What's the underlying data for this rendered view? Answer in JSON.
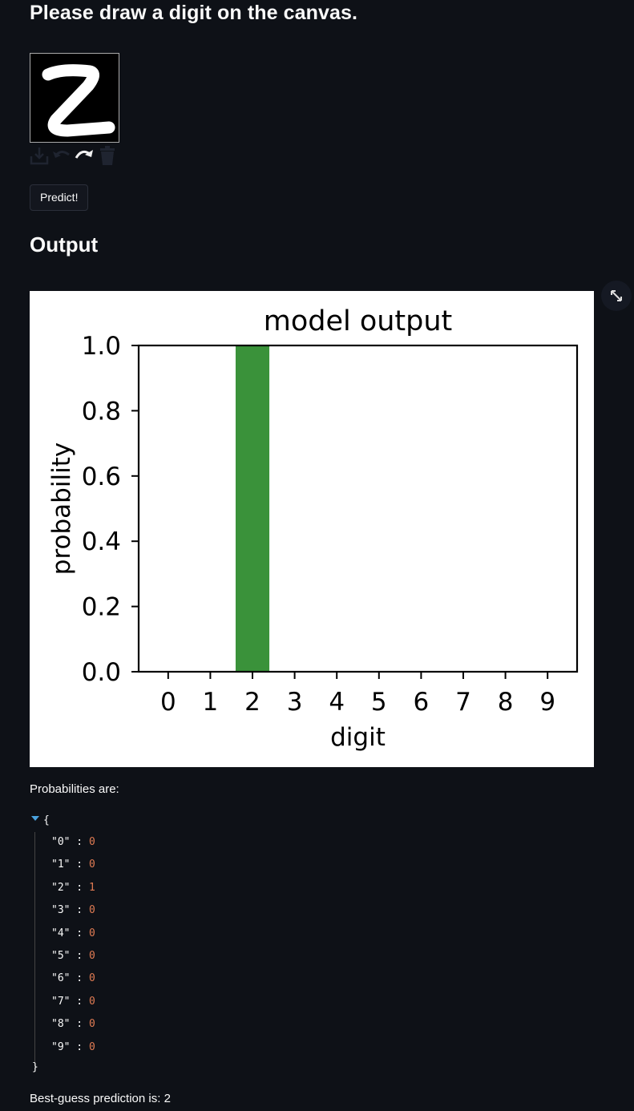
{
  "header": {
    "title": "Please draw a digit on the canvas."
  },
  "canvas": {
    "drawn_glyph": "Z"
  },
  "toolbar": {
    "icons": [
      "download-icon",
      "undo-icon",
      "redo-icon",
      "trash-icon"
    ]
  },
  "predict_button": {
    "label": "Predict!"
  },
  "output": {
    "heading": "Output"
  },
  "chart_data": {
    "type": "bar",
    "title": "model output",
    "xlabel": "digit",
    "ylabel": "probability",
    "categories": [
      "0",
      "1",
      "2",
      "3",
      "4",
      "5",
      "6",
      "7",
      "8",
      "9"
    ],
    "values": [
      0,
      0,
      1,
      0,
      0,
      0,
      0,
      0,
      0,
      0
    ],
    "ylim": [
      0,
      1.0
    ],
    "yticks": [
      "0.0",
      "0.2",
      "0.4",
      "0.6",
      "0.8",
      "1.0"
    ],
    "bar_color": "#3a923a",
    "grid": false
  },
  "probabilities": {
    "label": "Probabilities are:",
    "rows": [
      {
        "key": "\"0\"",
        "value": "0"
      },
      {
        "key": "\"1\"",
        "value": "0"
      },
      {
        "key": "\"2\"",
        "value": "1"
      },
      {
        "key": "\"3\"",
        "value": "0"
      },
      {
        "key": "\"4\"",
        "value": "0"
      },
      {
        "key": "\"5\"",
        "value": "0"
      },
      {
        "key": "\"6\"",
        "value": "0"
      },
      {
        "key": "\"7\"",
        "value": "0"
      },
      {
        "key": "\"8\"",
        "value": "0"
      },
      {
        "key": "\"9\"",
        "value": "0"
      }
    ]
  },
  "prediction": {
    "text": "Best-guess prediction is: 2"
  },
  "colors": {
    "background": "#0e1117",
    "json_value": "#e07b53",
    "caret": "#4aa3df"
  }
}
